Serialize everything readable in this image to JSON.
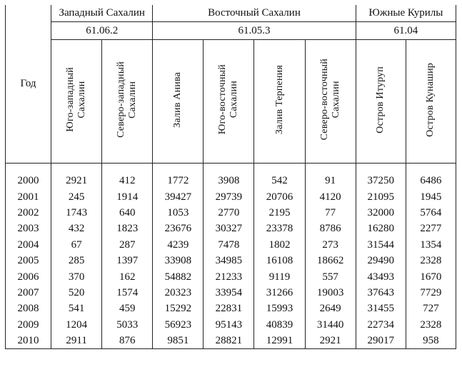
{
  "table": {
    "year_label": "Год",
    "groups": [
      {
        "name": "Западный Сахалин",
        "code": "61.06.2"
      },
      {
        "name": "Восточный Сахалин",
        "code": "61.05.3"
      },
      {
        "name": "Южные Курилы",
        "code": "61.04"
      }
    ],
    "subregions": [
      "Юго-западный\nСахалин",
      "Северо-западный\nСахалин",
      "Залив Анива",
      "Юго-восточный\nСахалин",
      "Залив Терпения",
      "Северо-восточный\nСахалин",
      "Остров Итуруп",
      "Остров Кунашир"
    ],
    "rows": [
      [
        "2000",
        "2921",
        "412",
        "1772",
        "3908",
        "542",
        "91",
        "37250",
        "6486"
      ],
      [
        "2001",
        "245",
        "1914",
        "39427",
        "29739",
        "20706",
        "4120",
        "21095",
        "1945"
      ],
      [
        "2002",
        "1743",
        "640",
        "1053",
        "2770",
        "2195",
        "77",
        "32000",
        "5764"
      ],
      [
        "2003",
        "432",
        "1823",
        "23676",
        "30327",
        "23378",
        "8786",
        "16280",
        "2277"
      ],
      [
        "2004",
        "67",
        "287",
        "4239",
        "7478",
        "1802",
        "273",
        "31544",
        "1354"
      ],
      [
        "2005",
        "285",
        "1397",
        "33908",
        "34985",
        "16108",
        "18662",
        "29490",
        "2328"
      ],
      [
        "2006",
        "370",
        "162",
        "54882",
        "21233",
        "9119",
        "557",
        "43493",
        "1670"
      ],
      [
        "2007",
        "520",
        "1574",
        "20323",
        "33954",
        "31266",
        "19003",
        "37643",
        "7729"
      ],
      [
        "2008",
        "541",
        "459",
        "15292",
        "22831",
        "15993",
        "2649",
        "31455",
        "727"
      ],
      [
        "2009",
        "1204",
        "5033",
        "56923",
        "95143",
        "40839",
        "31440",
        "22734",
        "2328"
      ],
      [
        "2010",
        "2911",
        "876",
        "9851",
        "28821",
        "12991",
        "2921",
        "29017",
        "958"
      ]
    ]
  }
}
